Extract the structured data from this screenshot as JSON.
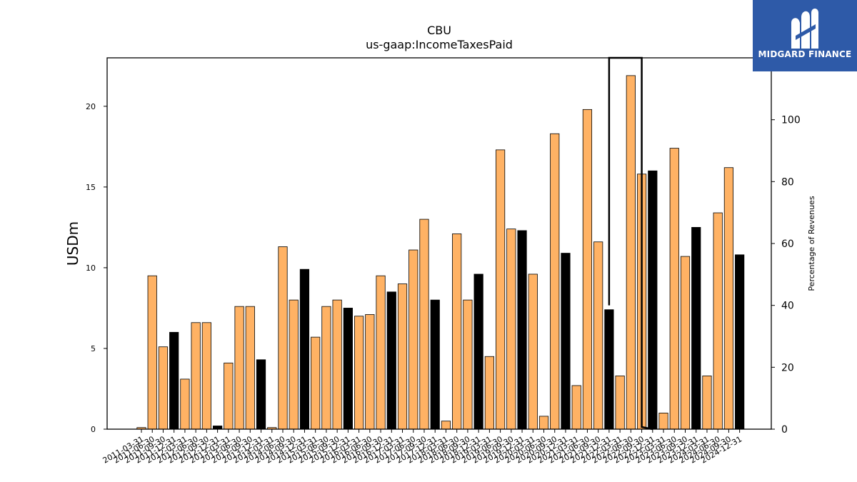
{
  "colors": {
    "bar_primary": "#ffb264",
    "bar_secondary": "#000000",
    "axis": "#000000",
    "logo_bg": "#2e5aa8"
  },
  "logo": {
    "text": "MIDGARD FINANCE",
    "icon": "midgard-m-logo"
  },
  "chart_data": {
    "type": "bar",
    "title": "CBU",
    "subtitle": "us-gaap:IncomeTaxesPaid",
    "ylabel": "USDm",
    "y2label": "Percentage of Revenues",
    "ylim": [
      0,
      23
    ],
    "y2lim": [
      0,
      120
    ],
    "yticks": [
      0,
      5,
      10,
      15,
      20
    ],
    "y2ticks": [
      0,
      20,
      40,
      60,
      80,
      100
    ],
    "categories": [
      "2011-03-31",
      "2011-06-30",
      "2011-09-30",
      "2011-12-31",
      "2012-03-31",
      "2012-06-30",
      "2012-09-30",
      "2012-12-31",
      "2013-03-31",
      "2013-06-30",
      "2013-09-30",
      "2013-12-31",
      "2014-03-31",
      "2014-06-30",
      "2014-09-30",
      "2014-12-31",
      "2015-03-31",
      "2015-06-30",
      "2015-09-30",
      "2015-12-31",
      "2016-03-31",
      "2016-06-30",
      "2016-09-30",
      "2016-12-31",
      "2017-03-31",
      "2017-06-30",
      "2017-09-30",
      "2017-12-31",
      "2018-03-31",
      "2018-06-30",
      "2018-09-30",
      "2018-12-31",
      "2019-03-31",
      "2019-06-30",
      "2019-09-30",
      "2019-12-31",
      "2020-03-31",
      "2020-06-30",
      "2020-09-30",
      "2020-12-31",
      "2021-03-31",
      "2021-06-30",
      "2021-09-30",
      "2021-12-31",
      "2022-03-31",
      "2022-06-30",
      "2022-09-30",
      "2022-12-31",
      "2023-03-31",
      "2023-06-30",
      "2023-09-30",
      "2023-12-31",
      "2024-03-31",
      "2024-06-30",
      "2024-09-30",
      "2024-12-31"
    ],
    "values": [
      0.1,
      9.5,
      5.1,
      6.0,
      3.1,
      6.6,
      6.6,
      0.2,
      4.1,
      7.6,
      7.6,
      4.3,
      0.1,
      11.3,
      8.0,
      9.9,
      5.7,
      7.6,
      8.0,
      7.5,
      7.0,
      7.1,
      9.5,
      8.5,
      9.0,
      11.1,
      13.0,
      8.0,
      0.5,
      12.1,
      8.0,
      9.6,
      4.5,
      17.3,
      12.4,
      12.3,
      9.6,
      0.8,
      18.3,
      10.9,
      2.7,
      19.8,
      11.6,
      7.4,
      3.3,
      21.9,
      15.8,
      16.0,
      1.0,
      17.4,
      10.7,
      12.5,
      3.3,
      13.4,
      16.2,
      10.8
    ],
    "bar_colors": [
      "primary",
      "primary",
      "primary",
      "secondary",
      "primary",
      "primary",
      "primary",
      "secondary",
      "primary",
      "primary",
      "primary",
      "secondary",
      "primary",
      "primary",
      "primary",
      "secondary",
      "primary",
      "primary",
      "primary",
      "secondary",
      "primary",
      "primary",
      "primary",
      "secondary",
      "primary",
      "primary",
      "primary",
      "secondary",
      "primary",
      "primary",
      "primary",
      "secondary",
      "primary",
      "primary",
      "primary",
      "secondary",
      "primary",
      "primary",
      "primary",
      "secondary",
      "primary",
      "primary",
      "primary",
      "secondary",
      "primary",
      "primary",
      "primary",
      "secondary",
      "primary",
      "primary",
      "primary",
      "secondary",
      "primary",
      "primary",
      "primary",
      "secondary"
    ],
    "line_series": {
      "axis": "y2",
      "x": [
        "2021-12-31",
        "2021-12-31",
        "2021-12-31",
        "2022-09-30",
        "2022-09-30",
        "2022-09-30",
        "2022-12-31"
      ],
      "values": [
        120,
        40,
        120,
        120,
        80,
        0.7,
        0
      ]
    }
  }
}
